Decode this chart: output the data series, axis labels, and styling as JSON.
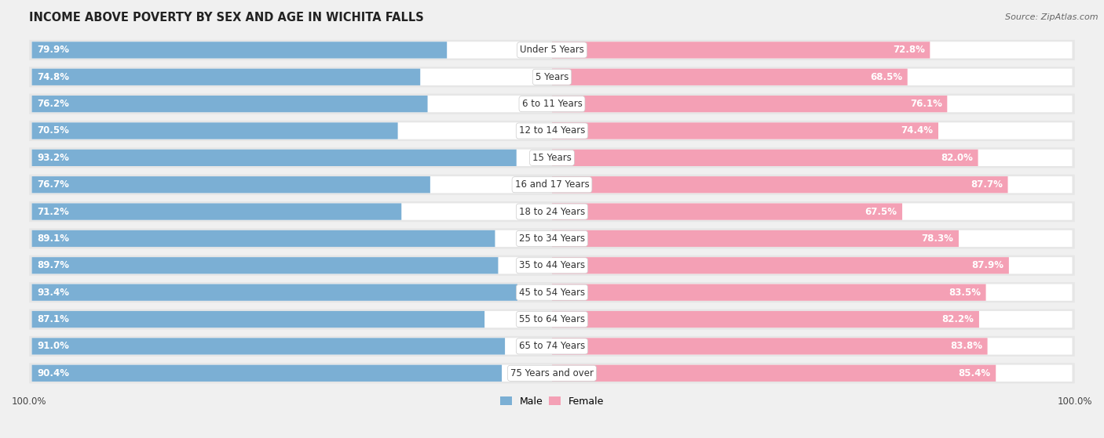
{
  "title": "INCOME ABOVE POVERTY BY SEX AND AGE IN WICHITA FALLS",
  "source": "Source: ZipAtlas.com",
  "categories": [
    "Under 5 Years",
    "5 Years",
    "6 to 11 Years",
    "12 to 14 Years",
    "15 Years",
    "16 and 17 Years",
    "18 to 24 Years",
    "25 to 34 Years",
    "35 to 44 Years",
    "45 to 54 Years",
    "55 to 64 Years",
    "65 to 74 Years",
    "75 Years and over"
  ],
  "male": [
    79.9,
    74.8,
    76.2,
    70.5,
    93.2,
    76.7,
    71.2,
    89.1,
    89.7,
    93.4,
    87.1,
    91.0,
    90.4
  ],
  "female": [
    72.8,
    68.5,
    76.1,
    74.4,
    82.0,
    87.7,
    67.5,
    78.3,
    87.9,
    83.5,
    82.2,
    83.8,
    85.4
  ],
  "male_color": "#7bafd4",
  "female_color": "#f4a0b5",
  "male_label": "Male",
  "female_label": "Female",
  "bg_color": "#f0f0f0",
  "bar_bg_color": "#ffffff",
  "row_bg_color": "#e8e8e8",
  "max_val": 100.0,
  "title_fontsize": 10.5,
  "label_fontsize": 8.5,
  "tick_fontsize": 8.5,
  "source_fontsize": 8,
  "cat_fontsize": 8.5
}
